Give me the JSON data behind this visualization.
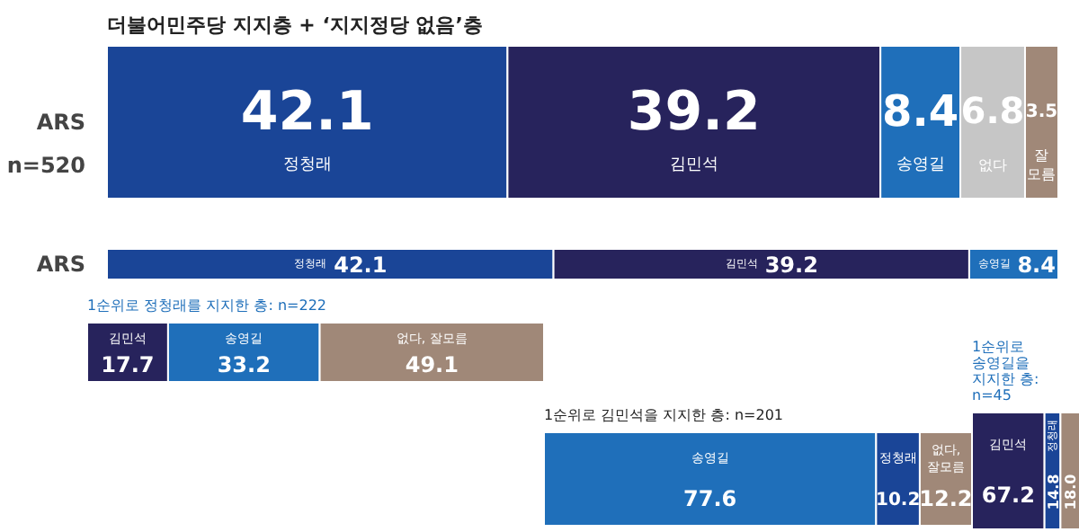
{
  "chart_data": [
    {
      "type": "bar",
      "orientation": "horizontal",
      "stacked": true,
      "data_labels": true,
      "title": "더불어민주당 지지층 + ‘지지정당 없음’층",
      "annotations": [
        "n=520"
      ],
      "categories": [
        "ARS"
      ],
      "series": [
        {
          "name": "정청래",
          "color": "#1a4597",
          "values": [
            42.1
          ]
        },
        {
          "name": "김민석",
          "color": "#27235c",
          "values": [
            39.2
          ]
        },
        {
          "name": "송영길",
          "color": "#1f6fba",
          "values": [
            8.4
          ]
        },
        {
          "name": "없다",
          "color": "#c6c6c6",
          "values": [
            6.8
          ]
        },
        {
          "name": "잘 모름",
          "color": "#a08878",
          "values": [
            3.5
          ]
        }
      ]
    },
    {
      "type": "bar",
      "orientation": "horizontal",
      "stacked": true,
      "data_labels": true,
      "categories": [
        "ARS"
      ],
      "series": [
        {
          "name": "정청래",
          "color": "#1a4597",
          "values": [
            42.1
          ]
        },
        {
          "name": "김민석",
          "color": "#27235c",
          "values": [
            39.2
          ]
        },
        {
          "name": "송영길",
          "color": "#1f6fba",
          "values": [
            8.4
          ]
        }
      ]
    },
    {
      "type": "bar",
      "orientation": "horizontal",
      "stacked": true,
      "data_labels": true,
      "title": "1순위로 정청래를 지지한 층: n=222",
      "categories": [
        null
      ],
      "series": [
        {
          "name": "김민석",
          "color": "#27235c",
          "values": [
            17.7
          ]
        },
        {
          "name": "송영길",
          "color": "#1f6fba",
          "values": [
            33.2
          ]
        },
        {
          "name": "없다, 잘모름",
          "color": "#a08878",
          "values": [
            49.1
          ]
        }
      ]
    },
    {
      "type": "bar",
      "orientation": "horizontal",
      "stacked": true,
      "data_labels": true,
      "title": "1순위로 김민석을 지지한 층: n=201",
      "categories": [
        null
      ],
      "series": [
        {
          "name": "송영길",
          "color": "#1f6fba",
          "values": [
            77.6
          ]
        },
        {
          "name": "정청래",
          "color": "#1a4597",
          "values": [
            10.2
          ]
        },
        {
          "name": "없다, 잘모름",
          "color": "#a08878",
          "values": [
            12.2
          ]
        }
      ]
    },
    {
      "type": "bar",
      "orientation": "horizontal",
      "stacked": true,
      "data_labels": true,
      "title": "1순위로 송영길을 지지한 층: n=45",
      "categories": [
        null
      ],
      "series": [
        {
          "name": "김민석",
          "color": "#27235c",
          "values": [
            67.2
          ]
        },
        {
          "name": "정청래",
          "color": "#1a4597",
          "values": [
            14.8
          ]
        },
        {
          "color": "#a08878",
          "values": [
            18.0
          ],
          "value_labels": [
            "18.0"
          ]
        }
      ]
    }
  ]
}
